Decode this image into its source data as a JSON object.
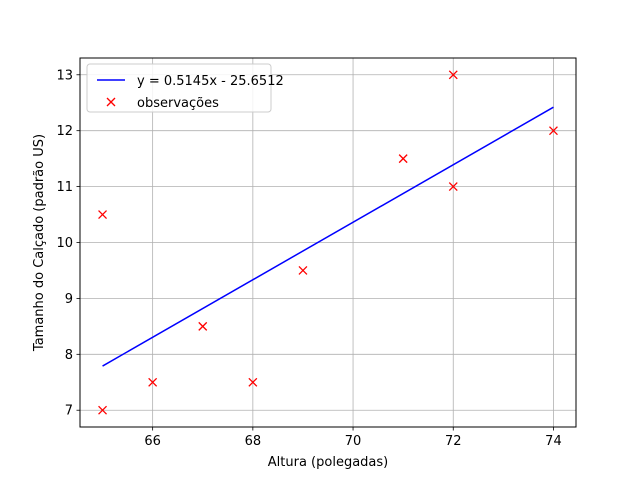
{
  "chart_data": {
    "type": "scatter",
    "title": "",
    "xlabel": "Altura (polegadas)",
    "ylabel": "Tamanho do Calçado (padrão US)",
    "xlim": [
      64.55,
      74.45
    ],
    "ylim": [
      6.7,
      13.3
    ],
    "xticks": [
      66,
      68,
      70,
      72,
      74
    ],
    "yticks": [
      7,
      8,
      9,
      10,
      11,
      12,
      13
    ],
    "grid": true,
    "legend_position": "top-left",
    "series": [
      {
        "name": "y = 0.5145x - 25.6512",
        "type": "line",
        "color": "#0000ff",
        "x": [
          65,
          74
        ],
        "y": [
          7.79,
          12.42
        ]
      },
      {
        "name": "observações",
        "type": "scatter",
        "marker": "x",
        "color": "#ff0000",
        "x": [
          65,
          65,
          66,
          67,
          68,
          69,
          71,
          72,
          72,
          74
        ],
        "y": [
          7,
          10.5,
          7.5,
          8.5,
          7.5,
          9.5,
          11.5,
          13,
          11,
          12
        ]
      }
    ]
  }
}
